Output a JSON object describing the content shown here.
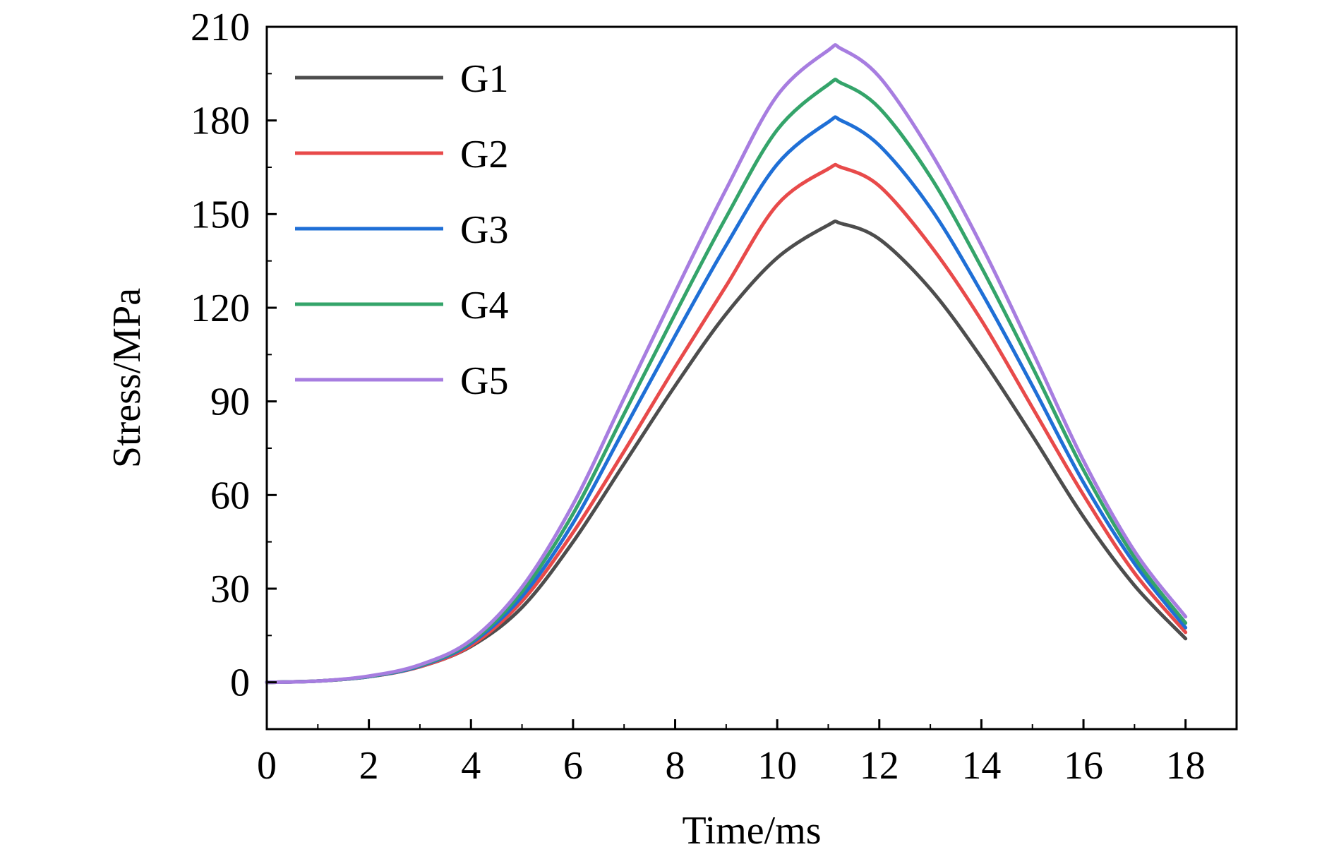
{
  "chart_data": {
    "type": "line",
    "xlabel": "Time/ms",
    "ylabel": "Stress/MPa",
    "xlim": [
      0,
      19
    ],
    "ylim": [
      -15,
      210
    ],
    "x_ticks": [
      0,
      2,
      4,
      6,
      8,
      10,
      12,
      14,
      16,
      18
    ],
    "y_ticks": [
      0,
      30,
      60,
      90,
      120,
      150,
      180,
      210
    ],
    "x_tick_labels": [
      "0",
      "2",
      "4",
      "6",
      "8",
      "10",
      "12",
      "14",
      "16",
      "18"
    ],
    "y_tick_labels": [
      "0",
      "30",
      "60",
      "90",
      "120",
      "150",
      "180",
      "210"
    ],
    "grid": false,
    "legend_position": "top-left",
    "x": [
      0,
      1,
      2,
      3,
      4,
      5,
      6,
      7,
      8,
      9,
      10,
      11,
      11.25,
      12,
      13,
      14,
      15,
      16,
      17,
      18
    ],
    "series": [
      {
        "name": "G1",
        "color": "#4d4d4d",
        "values": [
          0,
          0.4,
          1.8,
          5,
          11.5,
          24,
          45,
          70,
          95,
          118,
          136,
          146.5,
          147,
          142,
          126,
          104,
          79,
          53,
          31,
          14
        ]
      },
      {
        "name": "G2",
        "color": "#e84a4a",
        "values": [
          0,
          0.4,
          1.8,
          5,
          11.8,
          26,
          48,
          74,
          101,
          127,
          153,
          164.5,
          165,
          159,
          140,
          116,
          88,
          60,
          35,
          16
        ]
      },
      {
        "name": "G3",
        "color": "#1f6fd6",
        "values": [
          0,
          0.4,
          1.8,
          5.2,
          12.5,
          27.5,
          51,
          81,
          111,
          140,
          166,
          179.5,
          180,
          172,
          152,
          125,
          95,
          64,
          38,
          17.5
        ]
      },
      {
        "name": "G4",
        "color": "#34a46a",
        "values": [
          0,
          0.4,
          1.9,
          5.4,
          13,
          29,
          54,
          86,
          118,
          149,
          177,
          191.5,
          192,
          184,
          162,
          133,
          101,
          68,
          40,
          19
        ]
      },
      {
        "name": "G5",
        "color": "#a77de0",
        "values": [
          0,
          0.4,
          2,
          5.6,
          13.5,
          30.5,
          57,
          91,
          125,
          158,
          188,
          202.5,
          203,
          194,
          170,
          140,
          106,
          71,
          42,
          21
        ]
      }
    ]
  }
}
